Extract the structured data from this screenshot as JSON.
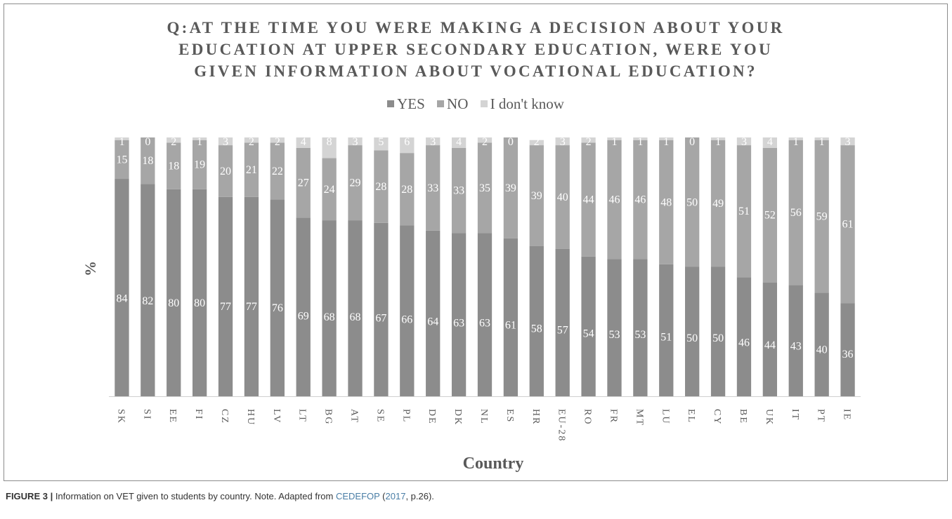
{
  "chart_data": {
    "type": "bar",
    "stacked": true,
    "title_lines": [
      "Q:AT THE TIME YOU WERE MAKING A DECISION ABOUT YOUR",
      "EDUCATION AT UPPER SECONDARY EDUCATION, WERE YOU",
      "GIVEN INFORMATION ABOUT VOCATIONAL EDUCATION?"
    ],
    "xlabel": "Country",
    "ylabel": "%",
    "ylim": [
      0,
      100
    ],
    "legend_position": "top",
    "categories": [
      "SK",
      "SI",
      "EE",
      "FI",
      "CZ",
      "HU",
      "LV",
      "LT",
      "BG",
      "AT",
      "SE",
      "PL",
      "DE",
      "DK",
      "NL",
      "ES",
      "HR",
      "EU-28",
      "RO",
      "FR",
      "MT",
      "LU",
      "EL",
      "CY",
      "BE",
      "UK",
      "IT",
      "PT",
      "IE"
    ],
    "series": [
      {
        "name": "YES",
        "color": "#8c8c8c",
        "values": [
          84,
          82,
          80,
          80,
          77,
          77,
          76,
          69,
          68,
          68,
          67,
          66,
          64,
          63,
          63,
          61,
          58,
          57,
          54,
          53,
          53,
          51,
          50,
          50,
          46,
          44,
          43,
          40,
          36
        ]
      },
      {
        "name": "NO",
        "color": "#a6a6a6",
        "values": [
          15,
          18,
          18,
          19,
          20,
          21,
          22,
          27,
          24,
          29,
          28,
          28,
          33,
          33,
          35,
          39,
          39,
          40,
          44,
          46,
          46,
          48,
          50,
          49,
          51,
          52,
          56,
          59,
          61
        ]
      },
      {
        "name": "I don't know",
        "color": "#d4d4d4",
        "values": [
          1,
          0,
          2,
          1,
          3,
          2,
          2,
          4,
          8,
          3,
          5,
          6,
          3,
          4,
          2,
          0,
          2,
          3,
          2,
          1,
          1,
          1,
          0,
          1,
          3,
          4,
          1,
          1,
          3
        ]
      }
    ]
  },
  "caption": {
    "figure_label": "FIGURE 3 |",
    "text_before": " Information on VET given to students by country. Note. Adapted from ",
    "reference": "CEDEFOP",
    "text_middle": " (",
    "year": "2017",
    "text_after": ", p.26)."
  }
}
